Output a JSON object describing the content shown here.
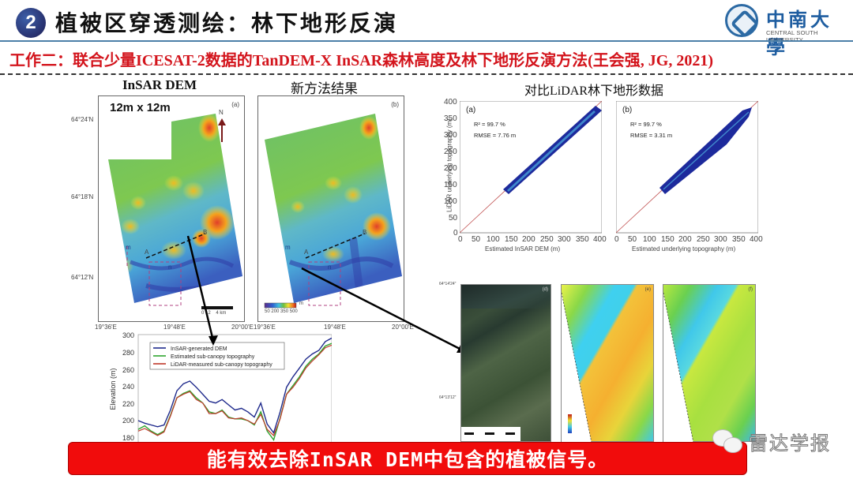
{
  "header": {
    "section_number": "2",
    "title": "植被区穿透测绘：林下地形反演",
    "logo": {
      "name_cn": "中南大學",
      "name_en": "CENTRAL SOUTH UNIVERSITY",
      "icon": "university-seal-icon"
    }
  },
  "subtitle": "工作二：联合少量ICESAT-2数据的TanDEM-X InSAR森林高度及林下地形反演方法(王会强, JG, 2021)",
  "panels": {
    "insar_dem": {
      "label": "InSAR DEM",
      "tag": "(a)",
      "resolution": "12m x 12m",
      "north": "N",
      "lat_ticks": [
        "64°24'N",
        "64°18'N",
        "64°12'N"
      ],
      "lon_ticks": [
        "19°36'E",
        "19°48'E",
        "20°00'E"
      ],
      "markers": [
        "A",
        "B",
        "m",
        "n"
      ],
      "scale_bar": [
        "0",
        "2",
        "4 km"
      ]
    },
    "new_method": {
      "label": "新方法结果",
      "tag": "(b)",
      "lon_ticks": [
        "19°36'E",
        "19°48'E",
        "20°00'E"
      ],
      "markers": [
        "A",
        "B",
        "m",
        "n"
      ],
      "colorbar": {
        "labels": [
          "50",
          "200",
          "350",
          "500"
        ],
        "unit": "m"
      }
    },
    "lidar_compare": {
      "label": "对比LiDAR林下地形数据"
    },
    "detail": {
      "tags": [
        "(d)",
        "(e)",
        "(f)"
      ],
      "lat_ticks": [
        "64°14'24\"",
        "64°13'12\""
      ],
      "colorbar_labels": [
        "250",
        "200"
      ]
    }
  },
  "chart_data": [
    {
      "type": "scatter",
      "title": "(a)",
      "xlabel": "Estimated InSAR DEM (m)",
      "ylabel": "LiDAR underlying topography (m)",
      "xlim": [
        0,
        400
      ],
      "ylim": [
        0,
        400
      ],
      "xticks": [
        0,
        50,
        100,
        150,
        200,
        250,
        300,
        350,
        400
      ],
      "yticks": [
        0,
        50,
        100,
        150,
        200,
        250,
        300,
        350,
        400
      ],
      "annotations": [
        "R² = 99.7 %",
        "RMSE = 7.76 m"
      ],
      "point_cloud_extent": {
        "x": [
          130,
          375
        ],
        "y": [
          125,
          370
        ]
      },
      "reference_line": "1:1"
    },
    {
      "type": "scatter",
      "title": "(b)",
      "xlabel": "Estimated underlying topography (m)",
      "ylabel": "",
      "xlim": [
        0,
        400
      ],
      "ylim": [
        0,
        400
      ],
      "xticks": [
        0,
        50,
        100,
        150,
        200,
        250,
        300,
        350,
        400
      ],
      "annotations": [
        "R² = 99.7 %",
        "RMSE = 3.31 m"
      ],
      "point_cloud_extent": {
        "x": [
          125,
          375
        ],
        "y": [
          125,
          370
        ]
      },
      "reference_line": "1:1"
    },
    {
      "type": "line",
      "title": "",
      "xlabel": "",
      "ylabel": "Elevation (m)",
      "ylim": [
        175,
        300
      ],
      "yticks": [
        180,
        200,
        220,
        240,
        260,
        280,
        300
      ],
      "legend_position": "upper-left",
      "x": [
        0,
        1,
        2,
        3,
        4,
        5,
        6,
        7,
        8,
        9,
        10,
        11,
        12,
        13,
        14,
        15,
        16,
        17,
        18,
        19,
        20,
        21,
        22,
        23,
        24,
        25,
        26,
        27,
        28,
        29,
        30
      ],
      "series": [
        {
          "name": "InSAR-generated DEM",
          "color": "#1f2a8c",
          "values": [
            202,
            199,
            197,
            195,
            197,
            214,
            236,
            244,
            247,
            240,
            232,
            224,
            222,
            226,
            220,
            214,
            216,
            212,
            206,
            222,
            198,
            188,
            212,
            240,
            252,
            262,
            272,
            278,
            282,
            292,
            296
          ]
        },
        {
          "name": "Estimated sub-canopy topography",
          "color": "#2fa52f",
          "values": [
            192,
            196,
            190,
            186,
            190,
            208,
            228,
            233,
            236,
            228,
            222,
            212,
            210,
            214,
            206,
            204,
            204,
            202,
            197,
            212,
            190,
            180,
            205,
            232,
            242,
            252,
            264,
            272,
            278,
            287,
            290
          ]
        },
        {
          "name": "LiDAR-measured sub-canopy topography",
          "color": "#c0392b",
          "values": [
            190,
            193,
            189,
            185,
            189,
            207,
            228,
            232,
            235,
            226,
            222,
            210,
            210,
            213,
            205,
            204,
            205,
            202,
            198,
            209,
            192,
            185,
            204,
            232,
            240,
            250,
            262,
            270,
            277,
            285,
            288
          ]
        }
      ]
    }
  ],
  "banner": {
    "text": "能有效去除InSAR DEM中包含的植被信号。",
    "color": "#f10c0c"
  },
  "watermark": {
    "text": "雷达学报",
    "icon": "wechat-icon"
  }
}
